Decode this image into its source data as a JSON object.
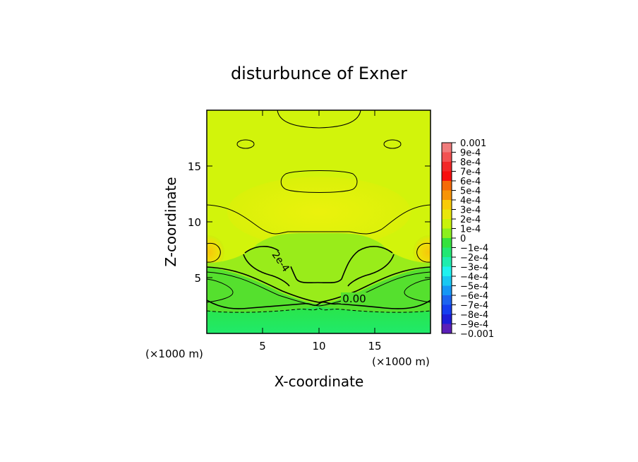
{
  "chart_data": {
    "type": "heatmap",
    "title": "disturbunce of Exner",
    "xlabel": "X-coordinate",
    "ylabel": "Z-coordinate",
    "x_unit": "(×1000 m)",
    "z_unit": "(×1000 m)",
    "xlim": [
      0,
      20
    ],
    "ylim": [
      0,
      20
    ],
    "x_ticks": [
      5,
      10,
      15
    ],
    "y_ticks": [
      5,
      10,
      15
    ],
    "x_tick_labels": [
      "5",
      "10",
      "15"
    ],
    "y_tick_labels": [
      "5",
      "10",
      "15"
    ],
    "grid": false,
    "legend_placement": "right",
    "colorbar": {
      "levels": [
        "0.001",
        "9e-4",
        "8e-4",
        "7e-4",
        "6e-4",
        "5e-4",
        "4e-4",
        "3e-4",
        "2e-4",
        "1e-4",
        "0",
        "−1e-4",
        "−2e-4",
        "−3e-4",
        "−4e-4",
        "−5e-4",
        "−6e-4",
        "−7e-4",
        "−8e-4",
        "−9e-4",
        "−0.001"
      ],
      "colors": [
        "#f07c7c",
        "#f25252",
        "#f22828",
        "#f70e0e",
        "#f56a08",
        "#f79407",
        "#f9cb08",
        "#e9e60b",
        "#c9f20b",
        "#8cef1d",
        "#35e23d",
        "#22e873",
        "#1fedae",
        "#1ff2ef",
        "#18c8f2",
        "#1597f5",
        "#1c64f0",
        "#143ef0",
        "#1c1dd8",
        "#5a1fb8"
      ]
    },
    "contour_labels": [
      "2e-4",
      "0.00"
    ],
    "fields": {
      "upper_layer_level": "2e-4",
      "max_near_side_walls": "4e-4",
      "lower_layer_level": "0",
      "min_bottom_level": "−1e-4"
    }
  }
}
